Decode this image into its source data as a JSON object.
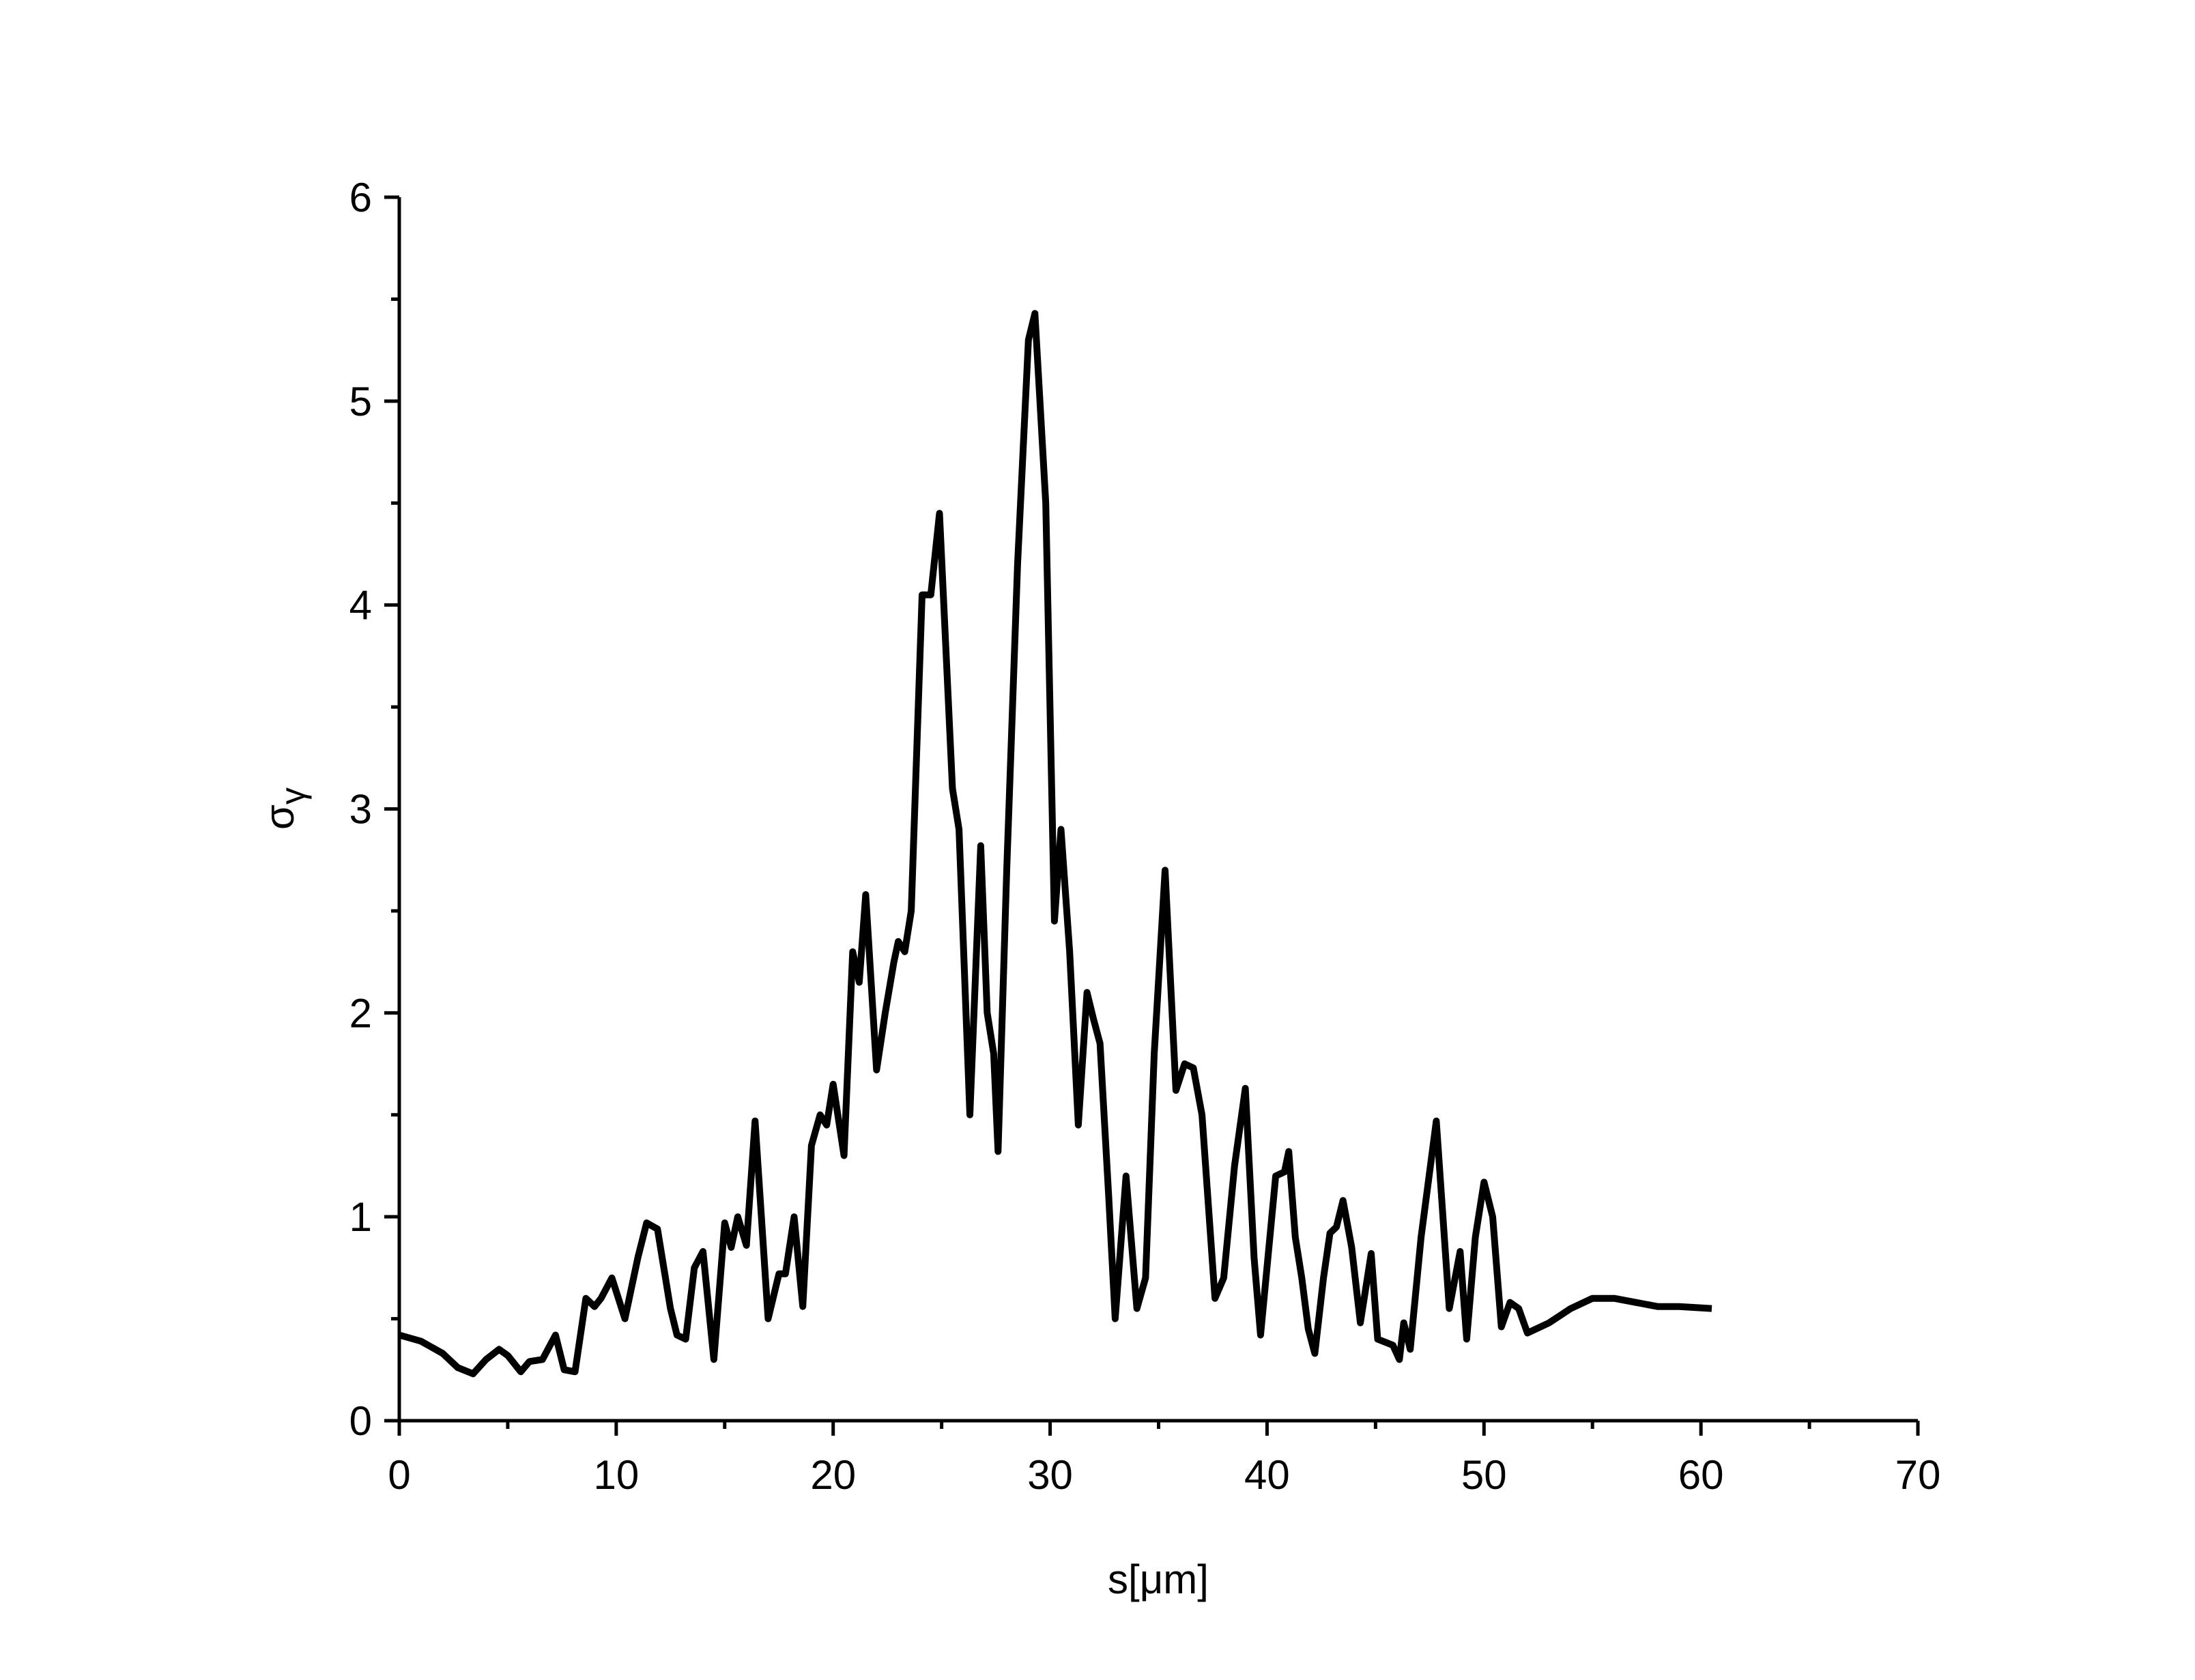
{
  "chart_data": {
    "type": "line",
    "xlabel": "s[μm]",
    "ylabel": "σ",
    "ylabel_subscript": "γ",
    "xlim": [
      0,
      70
    ],
    "xticks": [
      0,
      10,
      20,
      30,
      40,
      50,
      60,
      70
    ],
    "xticks_minor": [
      5,
      15,
      25,
      35,
      45,
      55,
      65
    ],
    "ylim": [
      0,
      6
    ],
    "yticks": [
      0,
      1,
      2,
      3,
      4,
      5,
      6
    ],
    "yticks_minor": [
      0.5,
      1.5,
      2.5,
      3.5,
      4.5,
      5.5
    ],
    "grid": false,
    "series": [
      {
        "color": "#000000",
        "x": [
          0,
          1,
          2,
          2.7,
          3.4,
          4,
          4.6,
          5,
          5.6,
          6,
          6.6,
          7.2,
          7.6,
          8.1,
          8.6,
          9,
          9.3,
          9.8,
          10.4,
          11,
          11.4,
          11.9,
          12.5,
          12.8,
          13.2,
          13.6,
          14,
          14.5,
          15,
          15.3,
          15.6,
          16,
          16.4,
          17,
          17.5,
          17.8,
          18.2,
          18.6,
          19,
          19.4,
          19.7,
          20,
          20.5,
          20.9,
          21.2,
          21.5,
          22,
          22.4,
          22.8,
          23,
          23.3,
          23.6,
          24.1,
          24.5,
          24.9,
          25.5,
          25.8,
          26.3,
          26.8,
          27.1,
          27.4,
          27.6,
          28,
          28.5,
          29,
          29.3,
          29.8,
          30.2,
          30.5,
          30.9,
          31.3,
          31.7,
          32,
          32.3,
          32.7,
          33,
          33.5,
          34,
          34.4,
          34.8,
          35.3,
          35.8,
          36.2,
          36.6,
          37,
          37.6,
          38,
          38.5,
          39,
          39.4,
          39.7,
          40.4,
          40.8,
          41,
          41.3,
          41.6,
          41.9,
          42.2,
          42.6,
          42.9,
          43.2,
          43.5,
          43.9,
          44.3,
          44.8,
          45.1,
          45.8,
          46.1,
          46.3,
          46.6,
          47.1,
          47.8,
          48.4,
          48.9,
          49.2,
          49.6,
          50,
          50.4,
          50.8,
          51.2,
          51.6,
          52,
          53,
          54,
          55,
          56,
          57,
          58,
          59,
          60.5
        ],
        "values": [
          0.42,
          0.39,
          0.33,
          0.26,
          0.23,
          0.3,
          0.35,
          0.32,
          0.24,
          0.29,
          0.3,
          0.42,
          0.25,
          0.24,
          0.6,
          0.56,
          0.6,
          0.7,
          0.5,
          0.8,
          0.97,
          0.94,
          0.55,
          0.42,
          0.4,
          0.75,
          0.83,
          0.3,
          0.97,
          0.85,
          1.0,
          0.86,
          1.47,
          0.5,
          0.72,
          0.72,
          1.0,
          0.56,
          1.35,
          1.5,
          1.45,
          1.65,
          1.3,
          2.3,
          2.15,
          2.58,
          1.72,
          2.0,
          2.25,
          2.35,
          2.3,
          2.5,
          4.05,
          4.05,
          4.45,
          3.1,
          2.9,
          1.5,
          2.82,
          2.0,
          1.8,
          1.32,
          2.7,
          4.2,
          5.3,
          5.43,
          4.5,
          2.45,
          2.9,
          2.3,
          1.45,
          2.1,
          1.97,
          1.85,
          1.1,
          0.5,
          1.2,
          0.55,
          0.7,
          1.8,
          2.7,
          1.62,
          1.75,
          1.73,
          1.5,
          0.6,
          0.7,
          1.25,
          1.63,
          0.8,
          0.42,
          1.2,
          1.22,
          1.32,
          0.9,
          0.7,
          0.45,
          0.33,
          0.7,
          0.92,
          0.95,
          1.08,
          0.85,
          0.48,
          0.82,
          0.4,
          0.37,
          0.3,
          0.48,
          0.35,
          0.9,
          1.47,
          0.55,
          0.83,
          0.4,
          0.9,
          1.17,
          1.0,
          0.46,
          0.58,
          0.55,
          0.43,
          0.48,
          0.55,
          0.6,
          0.6,
          0.58,
          0.56,
          0.56,
          0.55
        ]
      }
    ]
  }
}
